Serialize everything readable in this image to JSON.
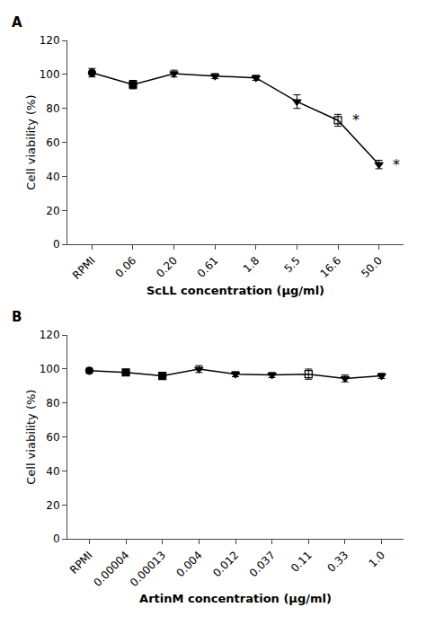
{
  "chart_data": [
    {
      "type": "line",
      "panel_label": "A",
      "xlabel": "ScLL concentration (μg/ml)",
      "ylabel": "Cell viability (%)",
      "categories": [
        "RPMI",
        "0.06",
        "0.20",
        "0.61",
        "1.8",
        "5.5",
        "16.6",
        "50.0"
      ],
      "values": [
        101,
        94,
        100.5,
        99,
        98,
        84,
        73,
        47
      ],
      "errors": [
        2.5,
        2.5,
        2.0,
        1.5,
        1.5,
        4.0,
        3.5,
        2.5
      ],
      "marker": [
        "circle",
        "square",
        "triangle-down",
        "triangle-down",
        "triangle-down",
        "triangle-down",
        "square-open",
        "triangle-down"
      ],
      "color": "#000000",
      "annotations": [
        {
          "text": "*",
          "category": "16.6"
        },
        {
          "text": "*",
          "category": "50.0"
        }
      ],
      "ylim": [
        0,
        120
      ],
      "yticks": [
        0,
        20,
        40,
        60,
        80,
        100,
        120
      ],
      "grid": false
    },
    {
      "type": "line",
      "panel_label": "B",
      "xlabel": "ArtinM concentration (μg/ml)",
      "ylabel": "Cell viability (%)",
      "categories": [
        "RPMI",
        "0.00004",
        "0.00013",
        "0.004",
        "0.012",
        "0.037",
        "0.11",
        "0.33",
        "1.0"
      ],
      "values": [
        99,
        98,
        96,
        100,
        97,
        96.5,
        97,
        94.5,
        96
      ],
      "errors": [
        1.5,
        1.5,
        1.5,
        2.0,
        1.5,
        1.5,
        3.0,
        2.0,
        1.5
      ],
      "marker": [
        "circle",
        "square",
        "square",
        "triangle-down",
        "triangle-down",
        "triangle-down",
        "square-open",
        "triangle-down",
        "triangle-down"
      ],
      "color": "#000000",
      "ylim": [
        0,
        120
      ],
      "yticks": [
        0,
        20,
        40,
        60,
        80,
        100,
        120
      ],
      "grid": false
    }
  ]
}
